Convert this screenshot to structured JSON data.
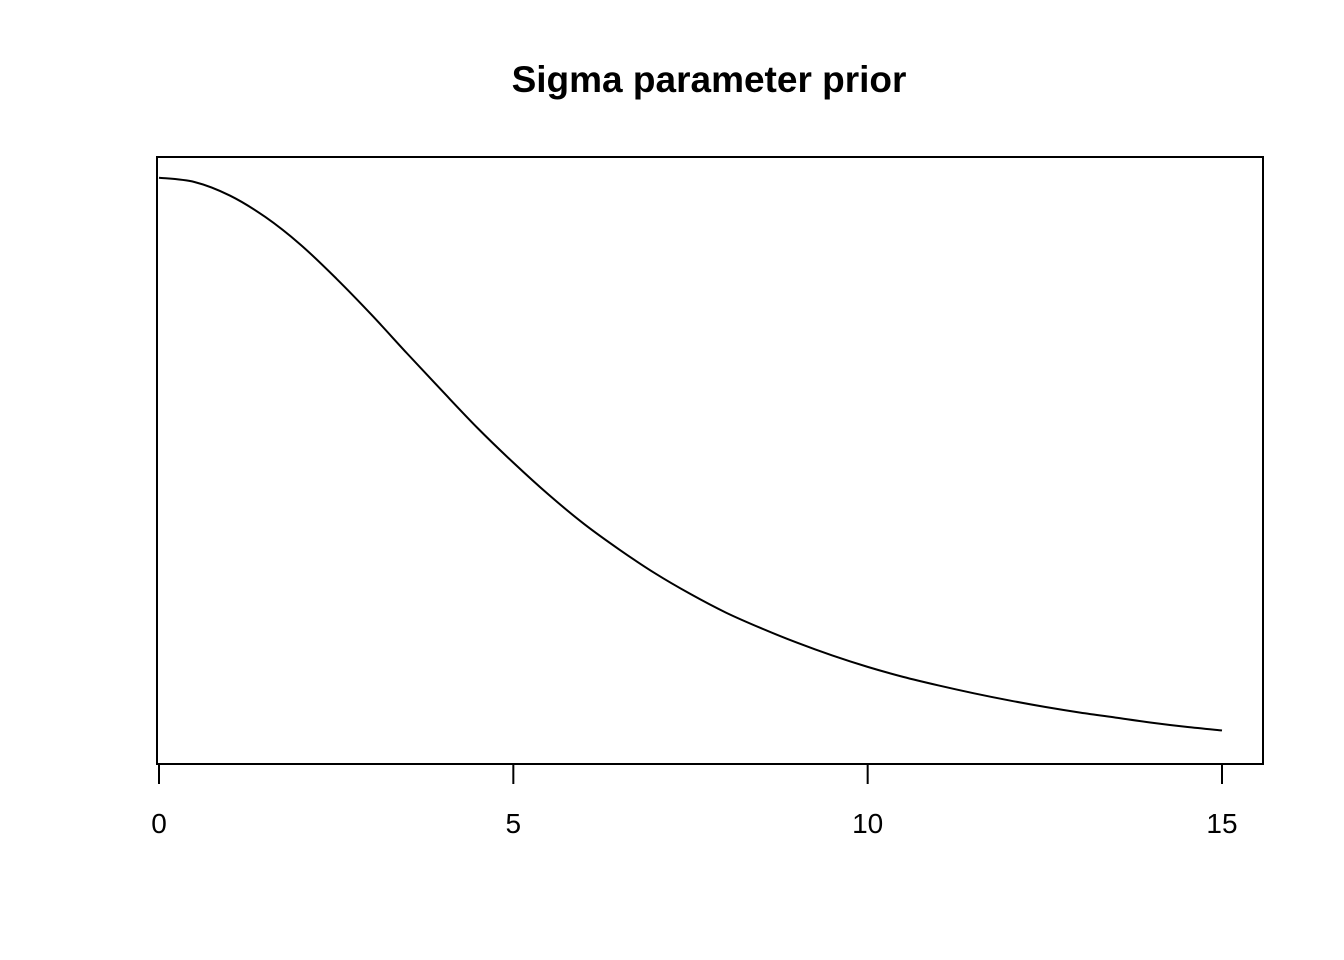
{
  "chart_data": {
    "type": "line",
    "title": "Sigma parameter prior",
    "xlabel": "",
    "ylabel": "",
    "xlim": [
      0,
      15
    ],
    "ylim": [
      0.024,
      0.109
    ],
    "x_ticks": [
      0,
      5,
      10,
      15
    ],
    "x_tick_labels": [
      "0",
      "5",
      "10",
      "15"
    ],
    "y_axis_shown": false,
    "grid": false,
    "box": true,
    "line_color": "#000000",
    "x": [
      0,
      0.5,
      1,
      1.5,
      2,
      2.5,
      3,
      3.5,
      4,
      4.5,
      5,
      5.5,
      6,
      6.5,
      7,
      7.5,
      8,
      8.5,
      9,
      9.5,
      10,
      10.5,
      11,
      11.5,
      12,
      12.5,
      13,
      13.5,
      14,
      14.5,
      15
    ],
    "y": [
      0.1061,
      0.1055,
      0.1036,
      0.1006,
      0.0967,
      0.092,
      0.0869,
      0.0815,
      0.0762,
      0.071,
      0.0662,
      0.0617,
      0.0576,
      0.054,
      0.0507,
      0.0478,
      0.0452,
      0.043,
      0.041,
      0.0392,
      0.0376,
      0.0362,
      0.035,
      0.0339,
      0.0329,
      0.032,
      0.0312,
      0.0305,
      0.0298,
      0.0292,
      0.0287
    ]
  }
}
